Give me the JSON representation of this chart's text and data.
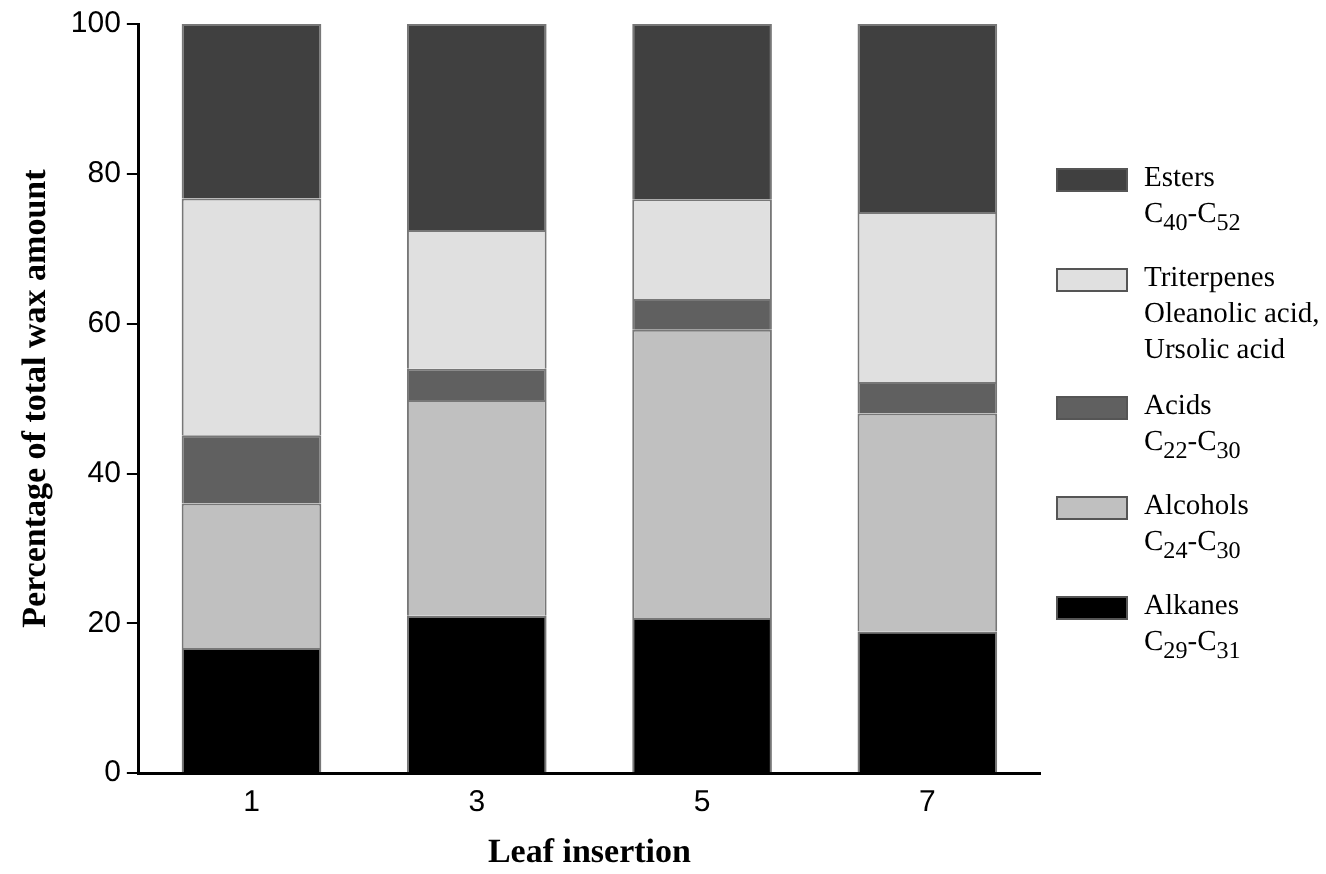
{
  "chart_data": {
    "type": "bar",
    "stacked": true,
    "xlabel": "Leaf insertion",
    "ylabel": "Percentage of total wax amount",
    "categories": [
      "1",
      "3",
      "5",
      "7"
    ],
    "series": [
      {
        "name": "Alkanes\nC$_{29}$-C$_{31}$",
        "color": "#000000",
        "values": [
          16.7,
          21.0,
          20.7,
          18.9
        ]
      },
      {
        "name": "Alcohols\nC$_{24}$-C$_{30}$",
        "color": "#c0c0c0",
        "values": [
          19.3,
          28.8,
          38.5,
          29.1
        ]
      },
      {
        "name": "Acids\nC$_{22}$-C$_{30}$",
        "color": "#606060",
        "values": [
          9.1,
          4.2,
          4.1,
          4.2
        ]
      },
      {
        "name": "Triterpenes\nOleanolic acid,\nUrsolic acid",
        "color": "#e0e0e0",
        "values": [
          31.6,
          18.5,
          13.3,
          22.7
        ]
      },
      {
        "name": "Esters\nC$_{40}$-C$_{52}$",
        "color": "#404040",
        "values": [
          23.3,
          27.5,
          23.4,
          25.1
        ]
      }
    ],
    "ylim": [
      0,
      100
    ],
    "yticks": [
      0,
      20,
      40,
      60,
      80,
      100
    ],
    "grid": false,
    "legend": "right"
  }
}
